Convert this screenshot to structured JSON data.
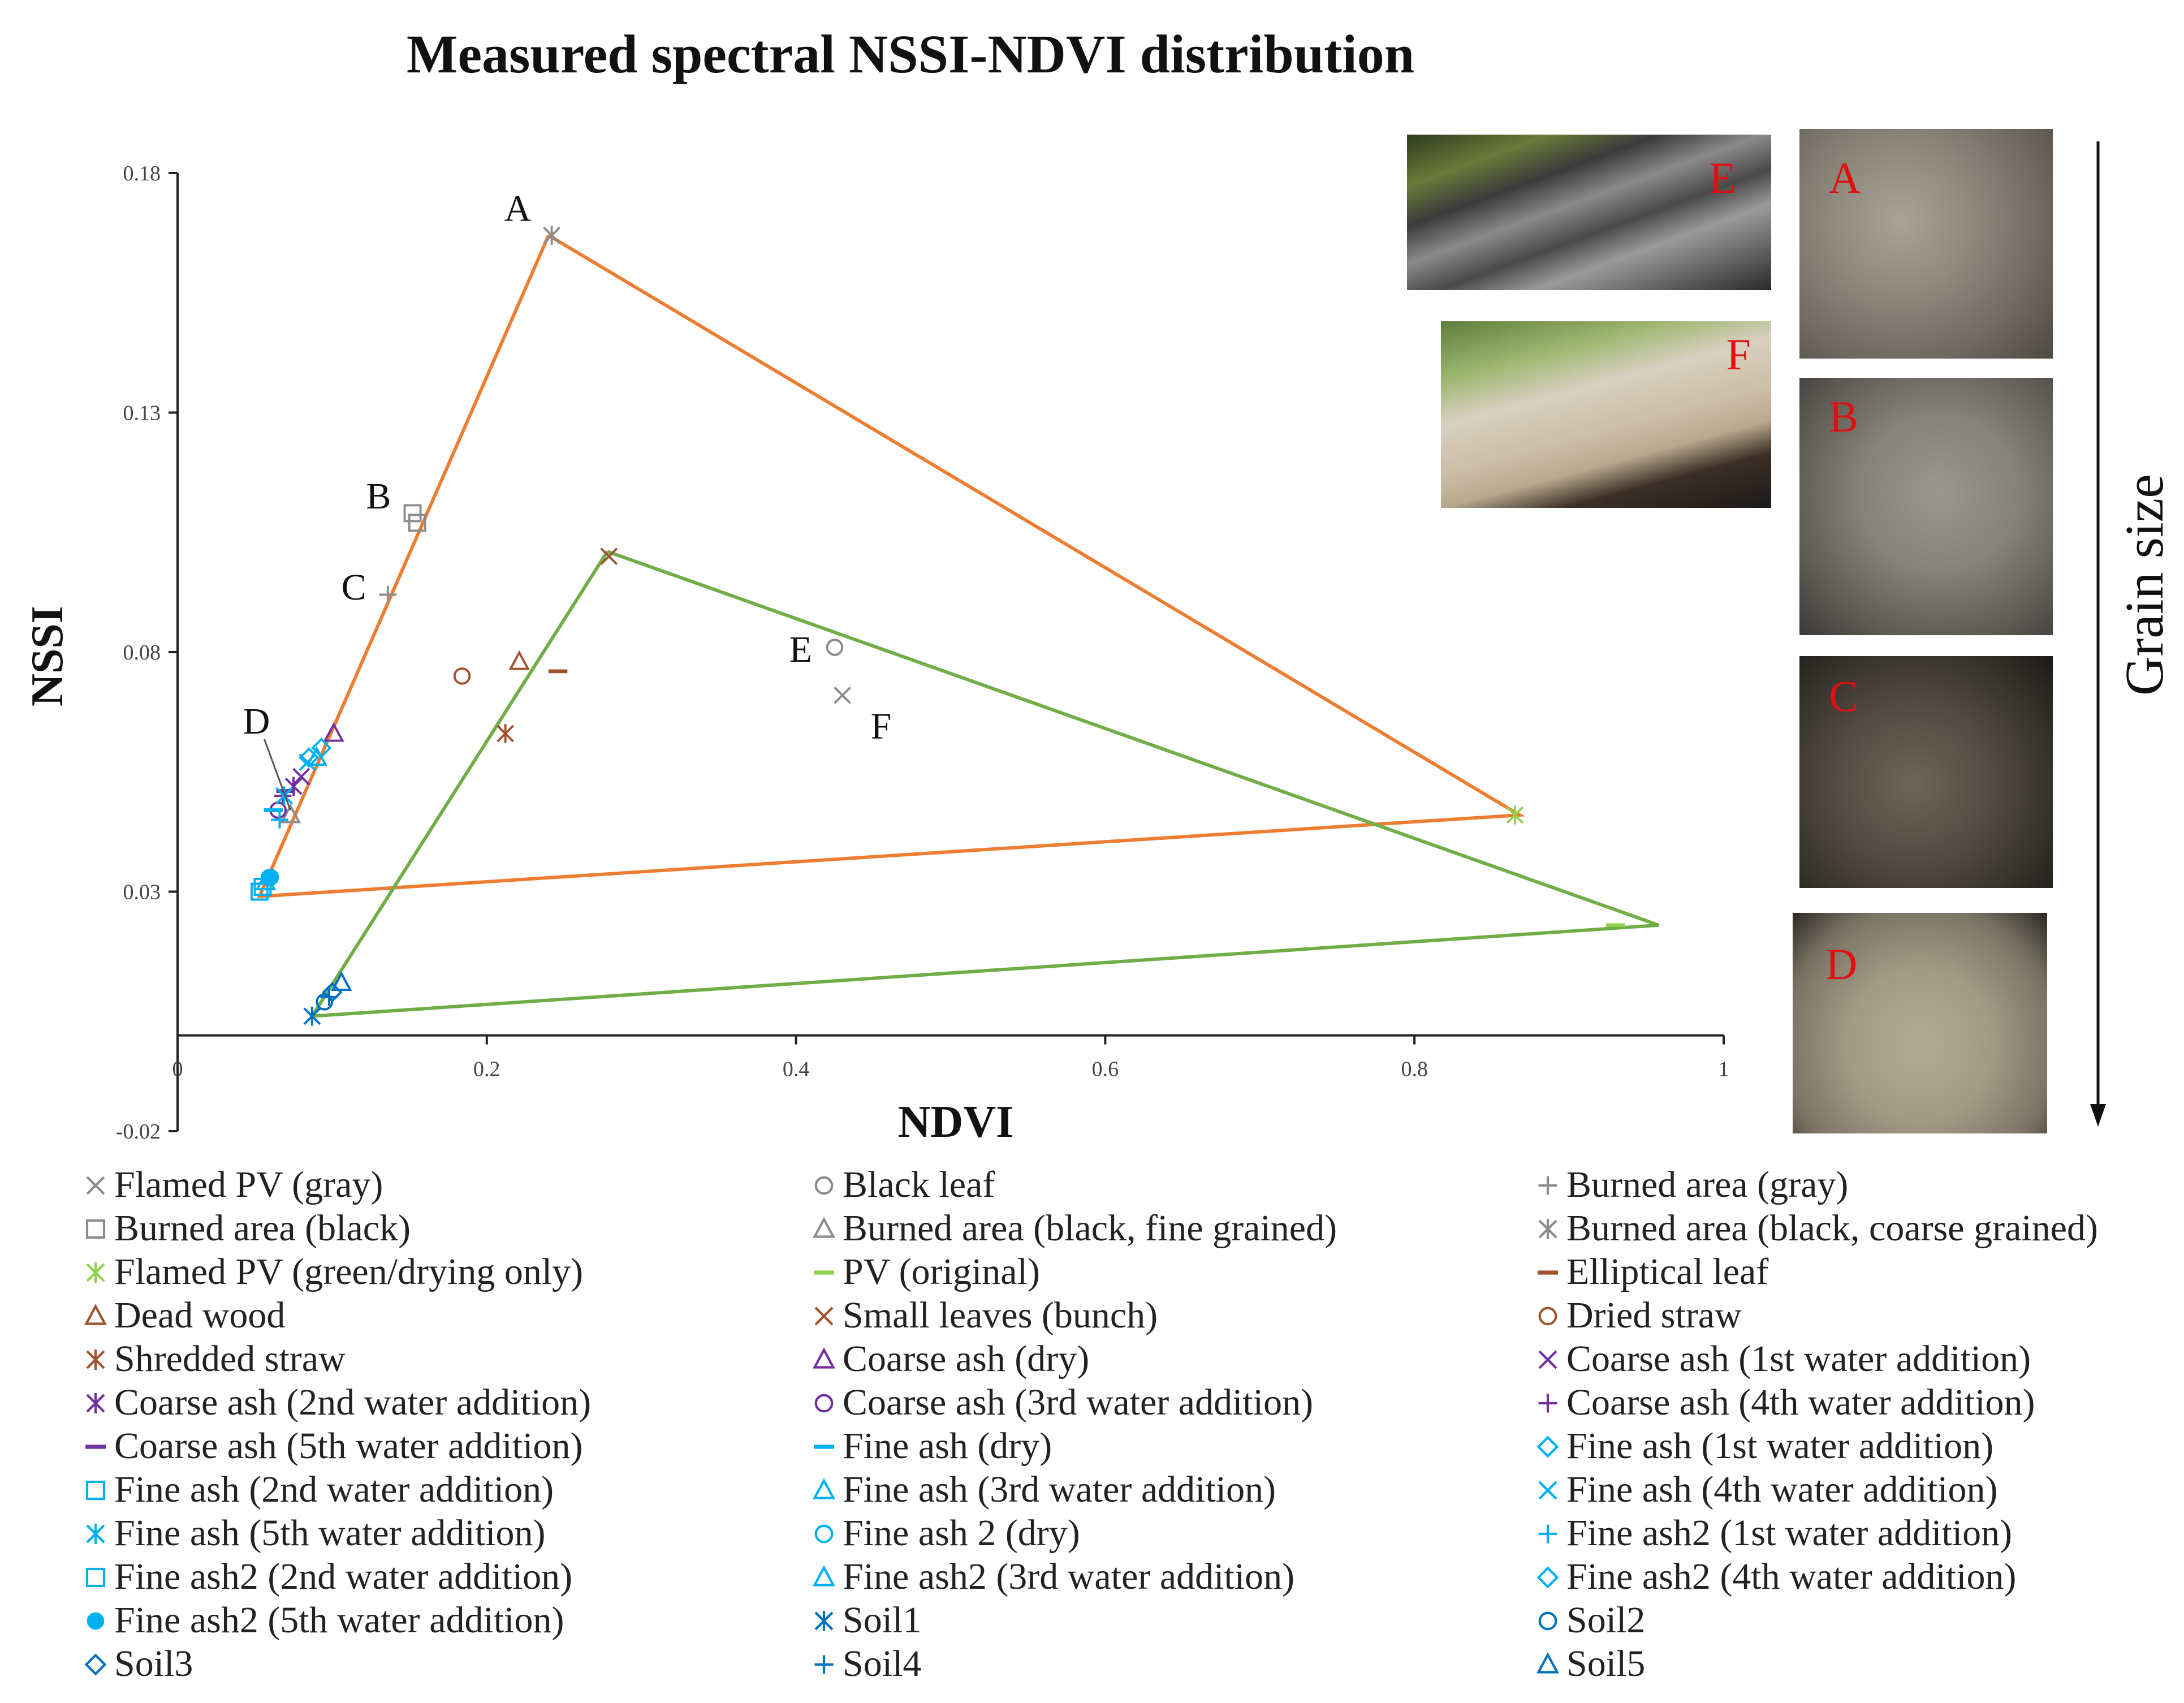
{
  "chart_data": {
    "type": "scatter",
    "title": "Measured spectral NSSI-NDVI distribution",
    "xlabel": "NDVI",
    "ylabel": "NSSI",
    "xlim": [
      0,
      1
    ],
    "ylim": [
      -0.02,
      0.18
    ],
    "x_ticks": [
      "0",
      "0.2",
      "0.4",
      "0.6",
      "0.8",
      "1"
    ],
    "x_tick_values": [
      0,
      0.2,
      0.4,
      0.6,
      0.8,
      1
    ],
    "y_ticks": [
      "0.18",
      "0.13",
      "0.08",
      "0.03",
      "-0.02"
    ],
    "y_tick_values": [
      0.18,
      0.13,
      0.08,
      0.03,
      -0.02
    ],
    "grid": false,
    "polygons": [
      {
        "name": "orange-triangle",
        "color": "#ED7D31",
        "points": [
          [
            0.24,
            0.167
          ],
          [
            0.868,
            0.046
          ],
          [
            0.053,
            0.029
          ],
          [
            0.24,
            0.167
          ]
        ]
      },
      {
        "name": "green-triangle",
        "color": "#70AD47",
        "points": [
          [
            0.278,
            0.101
          ],
          [
            0.958,
            0.023
          ],
          [
            0.087,
            0.004
          ],
          [
            0.278,
            0.101
          ]
        ]
      }
    ],
    "annotations": [
      {
        "text": "A",
        "x": 0.22,
        "y": 0.17
      },
      {
        "text": "B",
        "x": 0.13,
        "y": 0.11
      },
      {
        "text": "C",
        "x": 0.114,
        "y": 0.091
      },
      {
        "text": "D",
        "x": 0.051,
        "y": 0.063
      },
      {
        "text": "E",
        "x": 0.403,
        "y": 0.078
      },
      {
        "text": "F",
        "x": 0.455,
        "y": 0.062
      }
    ],
    "series": [
      {
        "name": "Flamed PV (gray)",
        "marker": "x",
        "color": "#8C8C8C",
        "points": [
          [
            0.43,
            0.071
          ]
        ]
      },
      {
        "name": "Black leaf",
        "marker": "circle",
        "color": "#8C8C8C",
        "points": [
          [
            0.425,
            0.081
          ]
        ]
      },
      {
        "name": "Burned area (gray)",
        "marker": "plus",
        "color": "#8C8C8C",
        "points": [
          [
            0.136,
            0.092
          ]
        ]
      },
      {
        "name": "Burned area (black)",
        "marker": "square",
        "color": "#8C8C8C",
        "points": [
          [
            0.152,
            0.109
          ],
          [
            0.155,
            0.107
          ]
        ]
      },
      {
        "name": "Burned area (black, fine grained)",
        "marker": "triangle",
        "color": "#8C8C8C",
        "points": [
          [
            0.073,
            0.046
          ]
        ]
      },
      {
        "name": "Burned area (black, coarse grained)",
        "marker": "star",
        "color": "#8C8C8C",
        "points": [
          [
            0.242,
            0.167
          ]
        ]
      },
      {
        "name": "Flamed PV (green/drying only)",
        "marker": "star",
        "color": "#92D050",
        "points": [
          [
            0.865,
            0.046
          ]
        ]
      },
      {
        "name": "PV (original)",
        "marker": "dash",
        "color": "#92D050",
        "points": [
          [
            0.93,
            0.023
          ]
        ]
      },
      {
        "name": "Elliptical leaf",
        "marker": "dash",
        "color": "#A0522D",
        "points": [
          [
            0.246,
            0.076
          ]
        ]
      },
      {
        "name": "Dead wood",
        "marker": "triangle",
        "color": "#A0522D",
        "points": [
          [
            0.221,
            0.078
          ]
        ]
      },
      {
        "name": "Small leaves (bunch)",
        "marker": "x",
        "color": "#A0522D",
        "points": [
          [
            0.279,
            0.1
          ]
        ]
      },
      {
        "name": "Dried straw",
        "marker": "circle",
        "color": "#A0522D",
        "points": [
          [
            0.184,
            0.075
          ]
        ]
      },
      {
        "name": "Shredded straw",
        "marker": "star",
        "color": "#A0522D",
        "points": [
          [
            0.212,
            0.063
          ]
        ]
      },
      {
        "name": "Coarse ash (dry)",
        "marker": "triangle",
        "color": "#7030A0",
        "points": [
          [
            0.101,
            0.063
          ]
        ]
      },
      {
        "name": "Coarse ash (1st water addition)",
        "marker": "x",
        "color": "#7030A0",
        "points": [
          [
            0.08,
            0.054
          ]
        ]
      },
      {
        "name": "Coarse ash (2nd water addition)",
        "marker": "star",
        "color": "#7030A0",
        "points": [
          [
            0.075,
            0.052
          ]
        ]
      },
      {
        "name": "Coarse ash (3rd water addition)",
        "marker": "circle",
        "color": "#7030A0",
        "points": [
          [
            0.065,
            0.047
          ]
        ]
      },
      {
        "name": "Coarse ash (4th water addition)",
        "marker": "plus",
        "color": "#7030A0",
        "points": [
          [
            0.068,
            0.05
          ]
        ]
      },
      {
        "name": "Coarse ash (5th water addition)",
        "marker": "dash",
        "color": "#7030A0",
        "points": [
          [
            0.07,
            0.051
          ]
        ]
      },
      {
        "name": "Fine ash (dry)",
        "marker": "dash",
        "color": "#00B0F0",
        "points": [
          [
            0.062,
            0.047
          ]
        ]
      },
      {
        "name": "Fine ash (1st water addition)",
        "marker": "diamond",
        "color": "#00B0F0",
        "points": [
          [
            0.093,
            0.06
          ]
        ]
      },
      {
        "name": "Fine ash (2nd water addition)",
        "marker": "square",
        "color": "#00B0F0",
        "points": [
          [
            0.053,
            0.03
          ]
        ]
      },
      {
        "name": "Fine ash (3rd water addition)",
        "marker": "triangle",
        "color": "#00B0F0",
        "points": [
          [
            0.09,
            0.058
          ]
        ]
      },
      {
        "name": "Fine ash (4th water addition)",
        "marker": "x",
        "color": "#00B0F0",
        "points": [
          [
            0.084,
            0.057
          ]
        ]
      },
      {
        "name": "Fine ash (5th water addition)",
        "marker": "star",
        "color": "#00B0F0",
        "points": [
          [
            0.069,
            0.05
          ]
        ]
      },
      {
        "name": "Fine ash 2 (dry)",
        "marker": "circle",
        "color": "#00B0F0",
        "points": [
          [
            0.06,
            0.033
          ]
        ]
      },
      {
        "name": "Fine ash2 (1st water addition)",
        "marker": "plus",
        "color": "#00B0F0",
        "points": [
          [
            0.066,
            0.045
          ]
        ]
      },
      {
        "name": "Fine ash2 (2nd water addition)",
        "marker": "square",
        "color": "#00B0F0",
        "points": [
          [
            0.055,
            0.031
          ]
        ]
      },
      {
        "name": "Fine ash2 (3rd water addition)",
        "marker": "triangle",
        "color": "#00B0F0",
        "points": [
          [
            0.057,
            0.032
          ]
        ]
      },
      {
        "name": "Fine ash2 (4th water addition)",
        "marker": "diamond",
        "color": "#00B0F0",
        "points": [
          [
            0.085,
            0.058
          ]
        ]
      },
      {
        "name": "Fine ash2 (5th water addition)",
        "marker": "circleFilled",
        "color": "#00B0F0",
        "points": [
          [
            0.059,
            0.033
          ]
        ]
      },
      {
        "name": "Soil1",
        "marker": "star",
        "color": "#0070C0",
        "points": [
          [
            0.087,
            0.004
          ]
        ]
      },
      {
        "name": "Soil2",
        "marker": "circle",
        "color": "#0070C0",
        "points": [
          [
            0.095,
            0.007
          ]
        ]
      },
      {
        "name": "Soil3",
        "marker": "diamond",
        "color": "#0070C0",
        "points": [
          [
            0.1,
            0.009
          ]
        ]
      },
      {
        "name": "Soil4",
        "marker": "plus",
        "color": "#0070C0",
        "points": [
          [
            0.098,
            0.008
          ]
        ]
      },
      {
        "name": "Soil5",
        "marker": "triangle",
        "color": "#0070C0",
        "points": [
          [
            0.106,
            0.011
          ]
        ]
      }
    ]
  },
  "photos": {
    "labels": [
      "A",
      "B",
      "C",
      "D",
      "E",
      "F"
    ]
  },
  "side_arrow": {
    "label": "Grain size"
  }
}
